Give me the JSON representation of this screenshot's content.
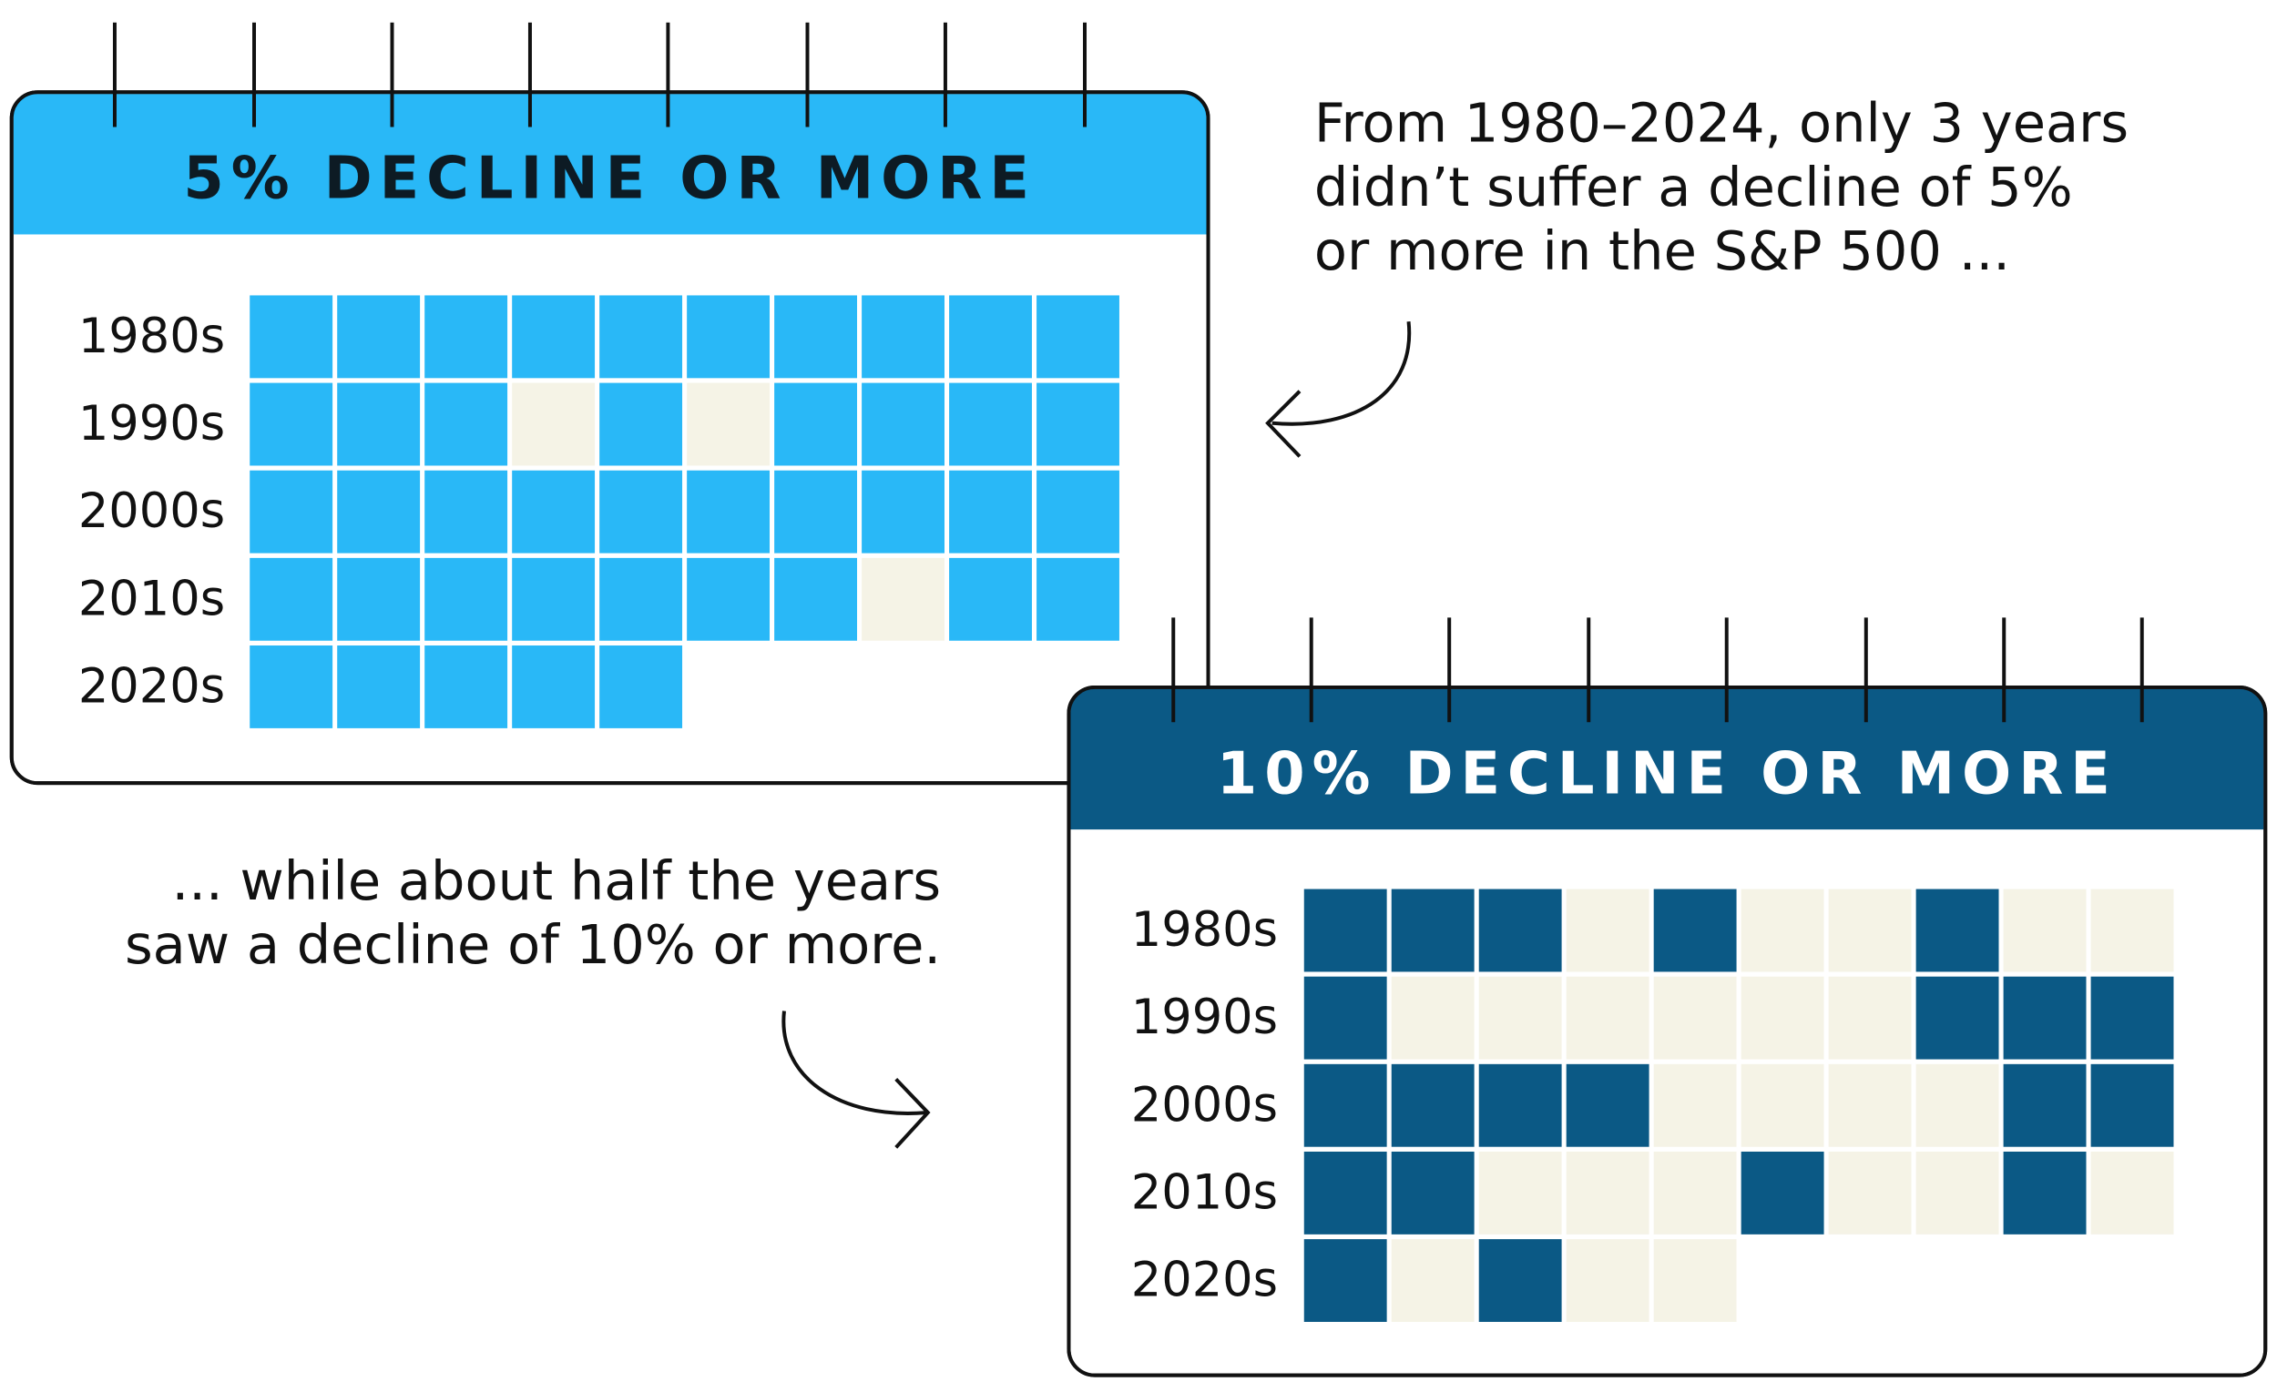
{
  "calendars": [
    {
      "title": "5% DECLINE OR MORE",
      "header_color": "#29b8f7",
      "title_color": "#0d1b24",
      "yes_color": "#29b8f7",
      "no_color": "#f5f3e6",
      "rows": [
        {
          "label": "1980s",
          "cells": [
            1,
            1,
            1,
            1,
            1,
            1,
            1,
            1,
            1,
            1
          ]
        },
        {
          "label": "1990s",
          "cells": [
            1,
            1,
            1,
            0,
            1,
            0,
            1,
            1,
            1,
            1
          ]
        },
        {
          "label": "2000s",
          "cells": [
            1,
            1,
            1,
            1,
            1,
            1,
            1,
            1,
            1,
            1
          ]
        },
        {
          "label": "2010s",
          "cells": [
            1,
            1,
            1,
            1,
            1,
            1,
            1,
            0,
            1,
            1
          ]
        },
        {
          "label": "2020s",
          "cells": [
            1,
            1,
            1,
            1,
            1
          ]
        }
      ]
    },
    {
      "title": "10% DECLINE OR MORE",
      "header_color": "#0b5985",
      "title_color": "#ffffff",
      "yes_color": "#0b5985",
      "no_color": "#f5f3e6",
      "rows": [
        {
          "label": "1980s",
          "cells": [
            1,
            1,
            1,
            0,
            1,
            0,
            0,
            1,
            0,
            0
          ]
        },
        {
          "label": "1990s",
          "cells": [
            1,
            0,
            0,
            0,
            0,
            0,
            0,
            1,
            1,
            1
          ]
        },
        {
          "label": "2000s",
          "cells": [
            1,
            1,
            1,
            1,
            0,
            0,
            0,
            0,
            1,
            1
          ]
        },
        {
          "label": "2010s",
          "cells": [
            1,
            1,
            0,
            0,
            0,
            1,
            0,
            0,
            1,
            0
          ]
        },
        {
          "label": "2020s",
          "cells": [
            1,
            0,
            1,
            0,
            0
          ]
        }
      ]
    }
  ],
  "notes": [
    {
      "lines": [
        "From 1980–2024, only 3 years",
        "didn’t suffer a decline of 5%",
        "or more in the S&P 500 ..."
      ]
    },
    {
      "lines": [
        "... while about half the years",
        "saw a decline of 10% or more."
      ]
    }
  ]
}
